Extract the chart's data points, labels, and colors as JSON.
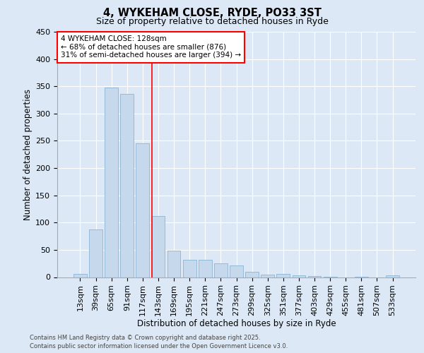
{
  "title1": "4, WYKEHAM CLOSE, RYDE, PO33 3ST",
  "title2": "Size of property relative to detached houses in Ryde",
  "xlabel": "Distribution of detached houses by size in Ryde",
  "ylabel": "Number of detached properties",
  "categories": [
    "13sqm",
    "39sqm",
    "65sqm",
    "91sqm",
    "117sqm",
    "143sqm",
    "169sqm",
    "195sqm",
    "221sqm",
    "247sqm",
    "273sqm",
    "299sqm",
    "325sqm",
    "351sqm",
    "377sqm",
    "403sqm",
    "429sqm",
    "455sqm",
    "481sqm",
    "507sqm",
    "533sqm"
  ],
  "values": [
    6,
    88,
    348,
    336,
    246,
    112,
    49,
    32,
    32,
    25,
    21,
    10,
    5,
    6,
    3,
    2,
    1,
    0,
    1,
    0,
    3
  ],
  "bar_color": "#c5d8ec",
  "bar_edge_color": "#8ab4d4",
  "vline_color": "red",
  "vline_x_index": 5,
  "annotation_text": "4 WYKEHAM CLOSE: 128sqm\n← 68% of detached houses are smaller (876)\n31% of semi-detached houses are larger (394) →",
  "annotation_box_color": "white",
  "annotation_box_edge": "red",
  "ylim": [
    0,
    450
  ],
  "yticks": [
    0,
    50,
    100,
    150,
    200,
    250,
    300,
    350,
    400,
    450
  ],
  "footer1": "Contains HM Land Registry data © Crown copyright and database right 2025.",
  "footer2": "Contains public sector information licensed under the Open Government Licence v3.0.",
  "bg_color": "#dce8f5",
  "plot_bg_color": "#dce8f5",
  "title1_fontsize": 10.5,
  "title2_fontsize": 9,
  "xlabel_fontsize": 8.5,
  "ylabel_fontsize": 8.5,
  "tick_fontsize": 8,
  "annot_fontsize": 7.5,
  "footer_fontsize": 6.0
}
